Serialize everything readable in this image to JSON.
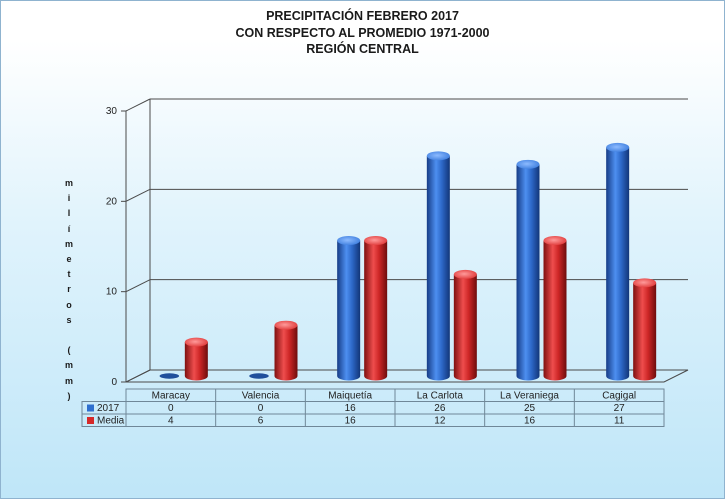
{
  "chart_data": {
    "type": "bar",
    "title": [
      "PRECIPITACIÓN FEBRERO 2017",
      "CON RESPECTO AL PROMEDIO 1971-2000",
      "REGIÓN CENTRAL"
    ],
    "ylabel_chars": [
      "m",
      "i",
      "l",
      "í",
      "m",
      "e",
      "t",
      "r",
      "o",
      "s",
      "",
      "(",
      "m",
      "m",
      ")"
    ],
    "categories": [
      "Maracay",
      "Valencia",
      "Maiquetía",
      "La Carlota",
      "La Veraniega",
      "Cagigal"
    ],
    "series": [
      {
        "name": "2017",
        "values": [
          0,
          0,
          16,
          26,
          25,
          27
        ],
        "color": "#2e6fcf"
      },
      {
        "name": "Media",
        "values": [
          4,
          6,
          16,
          12,
          16,
          11
        ],
        "color": "#d62a2a"
      }
    ],
    "y_ticks": [
      "0",
      "10",
      "20",
      "30"
    ],
    "ylim": [
      0,
      30
    ],
    "grid": true,
    "legend": "data-table"
  }
}
